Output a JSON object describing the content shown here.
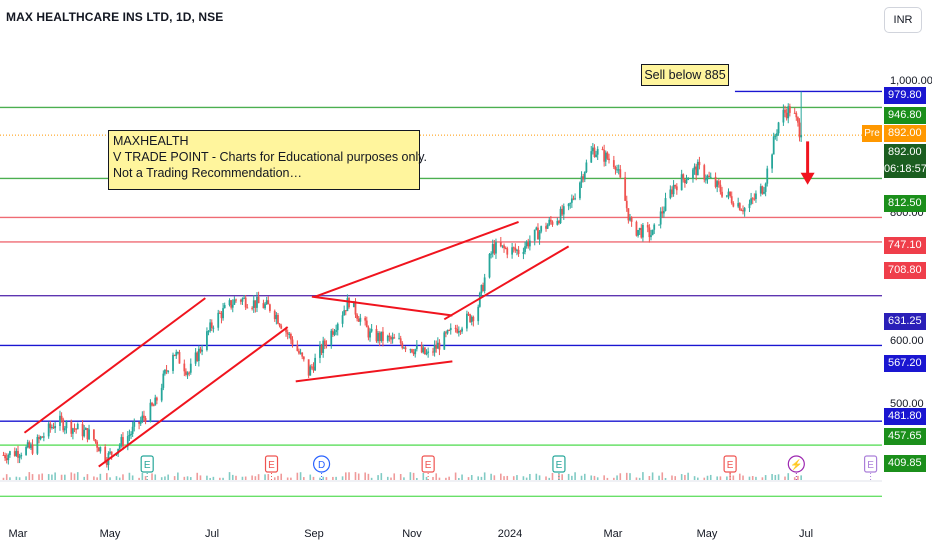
{
  "header": {
    "title": "MAX HEALTHCARE INS LTD, 1D, NSE",
    "currency": "INR"
  },
  "annotations": {
    "note_lines": [
      "MAXHEALTH",
      "V TRADE POINT - Charts for Educational purposes only.",
      "Not a Trading Recommendation…"
    ],
    "sell_label": "Sell below 885"
  },
  "price_tags": [
    {
      "label": "979.80",
      "value": 979.8,
      "color": "#1a16d1"
    },
    {
      "label": "946.80",
      "value": 946.8,
      "color": "#1b8f1b"
    },
    {
      "label": "892.00",
      "value": 892.0,
      "color": "#ff9800"
    },
    {
      "label": "892.00",
      "value": 892.0,
      "color": "#1b5e20"
    },
    {
      "label": "812.50",
      "value": 812.5,
      "color": "#1b8f1b"
    },
    {
      "label": "747.10",
      "value": 747.1,
      "color": "#ef3e4a"
    },
    {
      "label": "708.80",
      "value": 708.8,
      "color": "#ef3e4a"
    },
    {
      "label": "631.25",
      "value": 631.25,
      "color": "#2a1fb8"
    },
    {
      "label": "567.20",
      "value": 567.2,
      "color": "#1a16d1"
    },
    {
      "label": "481.80",
      "value": 481.8,
      "color": "#1a16d1"
    },
    {
      "label": "457.65",
      "value": 457.65,
      "color": "#1b8f1b"
    },
    {
      "label": "409.85",
      "value": 409.85,
      "color": "#1b8f1b"
    }
  ],
  "pre_label": "Pre",
  "countdown": "06:18:57",
  "levels": [
    {
      "value": 979.8,
      "color": "#1a16d1",
      "start": "2024-05-18"
    },
    {
      "value": 946.8,
      "color": "#4caf50"
    },
    {
      "value": 892.0,
      "color": "#ff9800",
      "dotted": true
    },
    {
      "value": 812.5,
      "color": "#4caf50"
    },
    {
      "value": 747.1,
      "color": "#ef6b73"
    },
    {
      "value": 708.8,
      "color": "#ef6b73"
    },
    {
      "value": 631.25,
      "color": "#5e35b1"
    },
    {
      "value": 567.2,
      "color": "#1a16d1"
    },
    {
      "value": 481.8,
      "color": "#1a16d1"
    },
    {
      "value": 457.65,
      "color": "#69e069"
    },
    {
      "value": 409.85,
      "color": "#69e069"
    }
  ],
  "chart_data": {
    "type": "candlestick",
    "title": "MAX HEALTHCARE INS LTD, 1D, NSE",
    "y_axis": {
      "ticks": [
        "1,000.00",
        "800.00",
        "600.00",
        "500.00"
      ],
      "tick_values": [
        1000,
        800,
        600,
        500
      ],
      "scale": "log"
    },
    "x_axis": {
      "ticks": [
        {
          "label": "Mar",
          "date": "2023-03-01"
        },
        {
          "label": "May",
          "date": "2023-05-01"
        },
        {
          "label": "Jul",
          "date": "2023-07-01"
        },
        {
          "label": "Sep",
          "date": "2023-09-01"
        },
        {
          "label": "Nov",
          "date": "2023-11-01"
        },
        {
          "label": "2024",
          "date": "2024-01-01"
        },
        {
          "label": "Mar",
          "date": "2024-03-01"
        },
        {
          "label": "May",
          "date": "2024-05-01"
        },
        {
          "label": "Jul",
          "date": "2024-07-01"
        }
      ]
    },
    "anchors": [
      {
        "date": "2023-02-20",
        "close": 448
      },
      {
        "date": "2023-03-10",
        "close": 455
      },
      {
        "date": "2023-03-25",
        "close": 482
      },
      {
        "date": "2023-04-15",
        "close": 468
      },
      {
        "date": "2023-04-25",
        "close": 445
      },
      {
        "date": "2023-05-10",
        "close": 470
      },
      {
        "date": "2023-05-25",
        "close": 500
      },
      {
        "date": "2023-06-05",
        "close": 560
      },
      {
        "date": "2023-06-15",
        "close": 535
      },
      {
        "date": "2023-07-01",
        "close": 600
      },
      {
        "date": "2023-07-15",
        "close": 628
      },
      {
        "date": "2023-08-05",
        "close": 615
      },
      {
        "date": "2023-08-20",
        "close": 565
      },
      {
        "date": "2023-08-28",
        "close": 535
      },
      {
        "date": "2023-09-10",
        "close": 580
      },
      {
        "date": "2023-09-22",
        "close": 625
      },
      {
        "date": "2023-10-05",
        "close": 580
      },
      {
        "date": "2023-10-25",
        "close": 570
      },
      {
        "date": "2023-11-10",
        "close": 555
      },
      {
        "date": "2023-11-25",
        "close": 585
      },
      {
        "date": "2023-12-10",
        "close": 610
      },
      {
        "date": "2023-12-20",
        "close": 700
      },
      {
        "date": "2024-01-05",
        "close": 695
      },
      {
        "date": "2024-01-20",
        "close": 730
      },
      {
        "date": "2024-02-05",
        "close": 760
      },
      {
        "date": "2024-02-20",
        "close": 865
      },
      {
        "date": "2024-03-05",
        "close": 840
      },
      {
        "date": "2024-03-15",
        "close": 730
      },
      {
        "date": "2024-03-28",
        "close": 720
      },
      {
        "date": "2024-04-10",
        "close": 800
      },
      {
        "date": "2024-04-25",
        "close": 830
      },
      {
        "date": "2024-05-10",
        "close": 790
      },
      {
        "date": "2024-05-25",
        "close": 760
      },
      {
        "date": "2024-06-05",
        "close": 800
      },
      {
        "date": "2024-06-15",
        "close": 930
      },
      {
        "date": "2024-06-22",
        "close": 945
      },
      {
        "date": "2024-06-28",
        "close": 892
      }
    ],
    "trendlines": [
      {
        "from": {
          "date": "2023-03-05",
          "price": 470
        },
        "to": {
          "date": "2023-06-25",
          "price": 628
        }
      },
      {
        "from": {
          "date": "2023-04-20",
          "price": 437
        },
        "to": {
          "date": "2023-08-15",
          "price": 590
        }
      },
      {
        "from": {
          "date": "2023-08-20",
          "price": 525
        },
        "to": {
          "date": "2023-11-25",
          "price": 548
        }
      },
      {
        "from": {
          "date": "2023-08-30",
          "price": 630
        },
        "to": {
          "date": "2023-11-25",
          "price": 605
        }
      },
      {
        "from": {
          "date": "2023-09-01",
          "price": 630
        },
        "to": {
          "date": "2024-01-05",
          "price": 740
        }
      },
      {
        "from": {
          "date": "2023-11-20",
          "price": 600
        },
        "to": {
          "date": "2024-02-05",
          "price": 702
        }
      }
    ],
    "event_markers": [
      {
        "date": "2023-05-20",
        "label": "E",
        "color": "#26a69a"
      },
      {
        "date": "2023-08-05",
        "label": "E",
        "color": "#ef5350"
      },
      {
        "date": "2023-09-05",
        "label": "D",
        "color": "#2962ff"
      },
      {
        "date": "2023-11-10",
        "label": "E",
        "color": "#ef5350"
      },
      {
        "date": "2024-01-30",
        "label": "E",
        "color": "#26a69a"
      },
      {
        "date": "2024-05-15",
        "label": "E",
        "color": "#ef5350"
      },
      {
        "date": "2024-06-25",
        "label": "⚡",
        "color": "#9c27b0"
      },
      {
        "date": "2024-08-10",
        "label": "E",
        "color": "#ab7fd9"
      }
    ],
    "arrow": {
      "date": "2024-07-02",
      "from_price": 880,
      "to_price": 805,
      "color": "#f0141e"
    },
    "legend": "none",
    "grid": false
  }
}
